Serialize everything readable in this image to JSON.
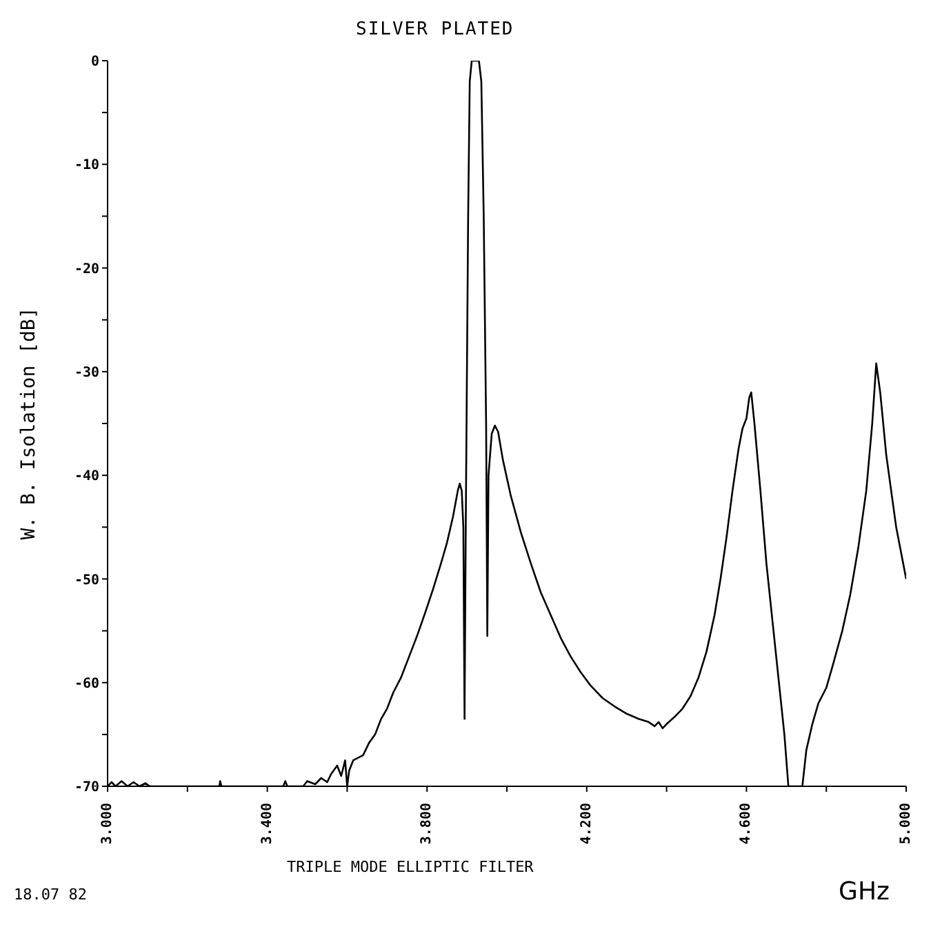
{
  "chart_data": {
    "type": "line",
    "title": "SILVER PLATED",
    "xlabel": "TRIPLE MODE ELLIPTIC FILTER",
    "ylabel": "W. B. Isolation [dB]",
    "annotations": [
      "18.07 82",
      "GHz"
    ],
    "xlim": [
      3,
      5
    ],
    "ylim": [
      -70,
      0
    ],
    "xticks": [
      {
        "value": 3,
        "label": "3.000"
      },
      {
        "value": 3.2,
        "label": null
      },
      {
        "value": 3.4,
        "label": "3.400"
      },
      {
        "value": 3.6,
        "label": null
      },
      {
        "value": 3.8,
        "label": "3.800"
      },
      {
        "value": 4,
        "label": null
      },
      {
        "value": 4.2,
        "label": "4.200"
      },
      {
        "value": 4.4,
        "label": null
      },
      {
        "value": 4.6,
        "label": "4.600"
      },
      {
        "value": 4.8,
        "label": null
      },
      {
        "value": 5,
        "label": "5.000"
      }
    ],
    "yticks": [
      -70,
      {
        "value": -65,
        "label": null
      },
      -60,
      {
        "value": -55,
        "label": null
      },
      -50,
      {
        "value": -45,
        "label": null
      },
      -40,
      {
        "value": -35,
        "label": null
      },
      -30,
      {
        "value": -25,
        "label": null
      },
      -20,
      {
        "value": -15,
        "label": null
      },
      -10,
      {
        "value": -5,
        "label": null
      },
      0
    ],
    "grid": false,
    "legend": false,
    "marker": "none",
    "line_style": "solid",
    "series": [
      {
        "color": "#000000",
        "x": [
          3.0,
          3.01,
          3.02,
          3.035,
          3.05,
          3.065,
          3.08,
          3.095,
          3.105,
          3.2,
          3.28,
          3.282,
          3.285,
          3.44,
          3.445,
          3.45,
          3.49,
          3.5,
          3.52,
          3.535,
          3.55,
          3.56,
          3.575,
          3.585,
          3.595,
          3.6,
          3.605,
          3.615,
          3.625,
          3.64,
          3.655,
          3.67,
          3.685,
          3.7,
          3.715,
          3.735,
          3.755,
          3.775,
          3.795,
          3.815,
          3.835,
          3.85,
          3.865,
          3.877,
          3.882,
          3.887,
          3.891,
          3.894,
          3.897,
          3.903,
          3.907,
          3.912,
          3.93,
          3.936,
          3.942,
          3.948,
          3.951,
          3.954,
          3.962,
          3.97,
          3.978,
          3.99,
          4.01,
          4.035,
          4.06,
          4.085,
          4.11,
          4.135,
          4.16,
          4.185,
          4.21,
          4.24,
          4.27,
          4.3,
          4.33,
          4.355,
          4.37,
          4.38,
          4.39,
          4.4,
          4.42,
          4.44,
          4.46,
          4.48,
          4.5,
          4.52,
          4.535,
          4.55,
          4.565,
          4.58,
          4.59,
          4.6,
          4.607,
          4.612,
          4.62,
          4.635,
          4.65,
          4.665,
          4.68,
          4.695,
          4.705,
          4.74,
          4.75,
          4.765,
          4.78,
          4.8,
          4.815,
          4.84,
          4.86,
          4.88,
          4.9,
          4.915,
          4.925,
          4.935,
          4.95,
          4.975,
          5.0
        ],
        "values": [
          -70,
          -69.6,
          -70,
          -69.5,
          -70,
          -69.6,
          -70,
          -69.7,
          -70,
          -70,
          -70,
          -69.5,
          -70,
          -70,
          -69.5,
          -70,
          -70,
          -69.5,
          -69.8,
          -69.2,
          -69.6,
          -68.8,
          -68,
          -69,
          -67.5,
          -70,
          -68.5,
          -67.5,
          -67.3,
          -67,
          -65.8,
          -65,
          -63.5,
          -62.5,
          -61,
          -59.5,
          -57.5,
          -55.5,
          -53.3,
          -51,
          -48.5,
          -46.5,
          -44,
          -41.5,
          -40.8,
          -41.5,
          -45,
          -63.5,
          -45,
          -15,
          -2,
          0,
          0,
          -2,
          -15,
          -35,
          -55.5,
          -40,
          -36,
          -35.2,
          -35.8,
          -38.5,
          -42,
          -45.5,
          -48.5,
          -51.3,
          -53.5,
          -55.7,
          -57.5,
          -59,
          -60.3,
          -61.5,
          -62.3,
          -63,
          -63.5,
          -63.8,
          -64.2,
          -63.8,
          -64.4,
          -64,
          -63.3,
          -62.5,
          -61.3,
          -59.5,
          -57,
          -53.5,
          -50,
          -46,
          -41.5,
          -37.5,
          -35.5,
          -34.5,
          -32.5,
          -32,
          -35,
          -41.5,
          -48.5,
          -54,
          -59.5,
          -65,
          -70,
          -70,
          -66.5,
          -64,
          -62,
          -60.5,
          -58.5,
          -55,
          -51.5,
          -47,
          -41.5,
          -35,
          -29.2,
          -32,
          -38,
          -45,
          -50
        ]
      }
    ]
  }
}
